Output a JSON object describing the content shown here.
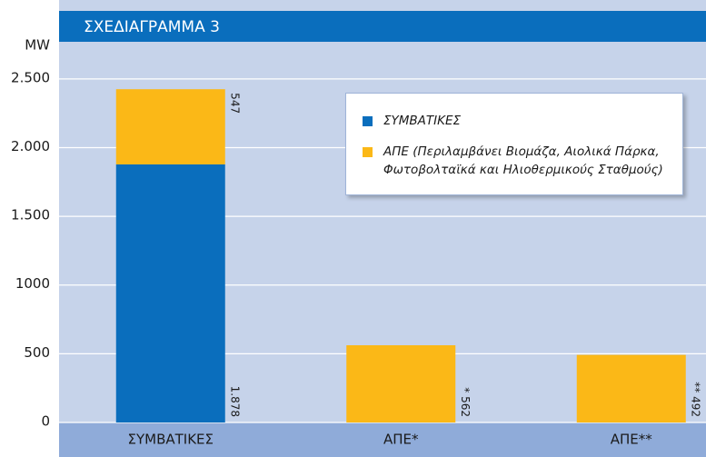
{
  "chart_data": {
    "type": "stacked_bar",
    "title": "ΣΧΕΔΙΑΓΡΑΜΜΑ 3",
    "y_label": "MW",
    "categories": [
      "ΣΥΜΒΑΤΙΚΕΣ",
      "ΑΠΕ*",
      "ΑΠΕ**"
    ],
    "series": [
      {
        "name": "ΣΥΜΒΑΤΙΚΕΣ",
        "color": "#0a6ebd",
        "values": [
          1878,
          null,
          null
        ],
        "value_labels": [
          "1.878",
          null,
          null
        ]
      },
      {
        "name": "ΑΠΕ (Περιλαμβάνει Βιομάζα, Αιολικά Πάρκα, Φωτοβολταϊκά και Ηλιοθερμικούς Σταθμούς)",
        "color": "#fbb817",
        "values": [
          547,
          562,
          492
        ],
        "value_labels": [
          "547",
          "* 562",
          "** 492"
        ]
      }
    ],
    "ylim": [
      0,
      2770
    ],
    "yticks": [
      0,
      500,
      1000,
      {
        "value": 1500,
        "label": "1.500"
      },
      {
        "value": 2000,
        "label": "2.000"
      },
      {
        "value": 2500,
        "label": "2.500"
      }
    ],
    "grid": true
  }
}
